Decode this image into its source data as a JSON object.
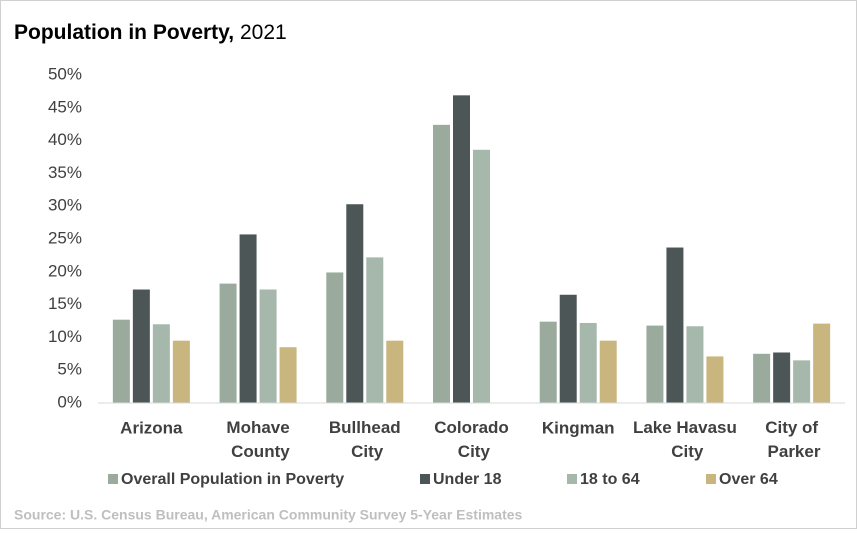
{
  "chart_data": {
    "type": "bar",
    "title": "Population in Poverty,",
    "title_year": "2021",
    "source": "Source: U.S. Census Bureau, American Community Survey 5-Year Estimates",
    "categories": [
      "Arizona",
      "Mohave County",
      "Bullhead City",
      "Colorado City",
      "Kingman",
      "Lake Havasu City",
      "City of Parker"
    ],
    "series": [
      {
        "name": "Overall Population in Poverty",
        "color": "#9aab9d",
        "values": [
          12.7,
          18.2,
          19.9,
          42.4,
          12.4,
          11.8,
          7.5
        ]
      },
      {
        "name": "Under 18",
        "color": "#4d5656",
        "values": [
          17.3,
          25.7,
          30.3,
          46.9,
          16.5,
          23.7,
          7.7
        ]
      },
      {
        "name": "18 to 64",
        "color": "#a5b8ab",
        "values": [
          12.0,
          17.3,
          22.2,
          38.6,
          12.2,
          11.7,
          6.5
        ]
      },
      {
        "name": "Over 64",
        "color": "#c9b57e",
        "values": [
          9.5,
          8.5,
          9.5,
          null,
          9.5,
          7.1,
          12.1
        ]
      }
    ],
    "ylim": [
      0,
      50
    ],
    "yticks": [
      {
        "value": 0,
        "label": "0%"
      },
      {
        "value": 5,
        "label": "5%"
      },
      {
        "value": 10,
        "label": "10%"
      },
      {
        "value": 15,
        "label": "15%"
      },
      {
        "value": 20,
        "label": "20%"
      },
      {
        "value": 25,
        "label": "25%"
      },
      {
        "value": 30,
        "label": "30%"
      },
      {
        "value": 35,
        "label": "35%"
      },
      {
        "value": 40,
        "label": "40%"
      },
      {
        "value": 45,
        "label": "45%"
      },
      {
        "value": 50,
        "label": "50%"
      }
    ],
    "grid": false
  }
}
